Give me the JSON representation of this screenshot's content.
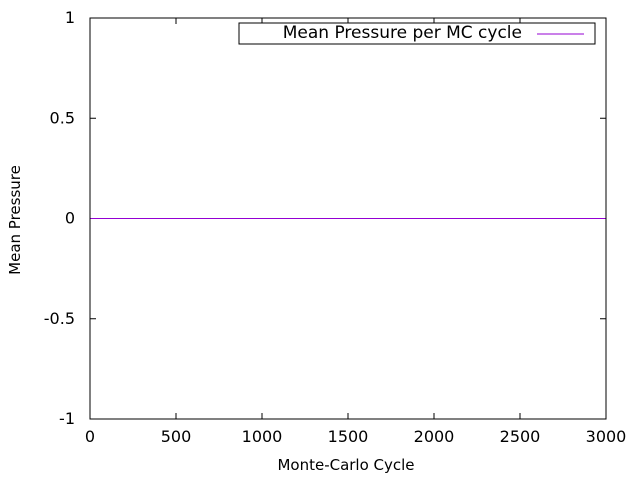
{
  "chart_data": {
    "type": "line",
    "title": "",
    "xlabel": "Monte-Carlo Cycle",
    "ylabel": "Mean Pressure",
    "xlim": [
      0,
      3000
    ],
    "ylim": [
      -1,
      1
    ],
    "x_ticks": [
      0,
      500,
      1000,
      1500,
      2000,
      2500,
      3000
    ],
    "y_ticks": [
      -1,
      -0.5,
      0,
      0.5,
      1
    ],
    "grid": false,
    "legend": "top-right",
    "series": [
      {
        "name": "Mean Pressure per MC cycle",
        "color": "#9400d3",
        "x": [
          0,
          3000
        ],
        "y": [
          0,
          0
        ]
      }
    ]
  }
}
